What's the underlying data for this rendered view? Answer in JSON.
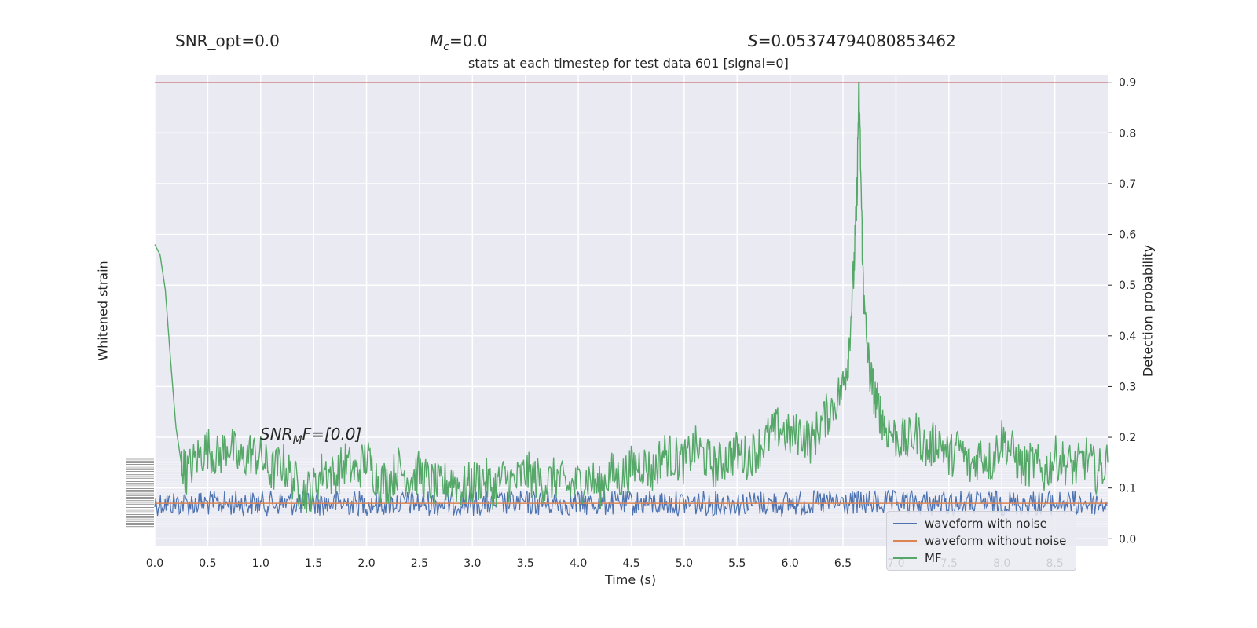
{
  "header": {
    "snr_opt": "SNR_opt=0.0",
    "mc_prefix": "M",
    "mc_sub": "c",
    "mc_value": "=0.0",
    "s_prefix": "S",
    "s_value": "=0.05374794080853462",
    "title": "stats at each timestep for test data 601 [signal=0]",
    "snr_mf_prefix": "SNR",
    "snr_mf_sub": "M",
    "snr_mf_suffix": "F=[0.0]"
  },
  "axes": {
    "xlabel": "Time (s)",
    "ylabel_left": "Whitened strain",
    "ylabel_right": "Detection probability"
  },
  "legend": {
    "items": [
      {
        "label": "waveform with noise",
        "color": "#4c72b0"
      },
      {
        "label": "waveform without noise",
        "color": "#dd8452"
      },
      {
        "label": "MF",
        "color": "#55a868"
      }
    ]
  },
  "colors": {
    "plot_bg": "#eaeaf2",
    "grid": "#ffffff",
    "noise": "#4c72b0",
    "no_noise": "#dd8452",
    "mf": "#55a868",
    "threshold": "#c44e52"
  },
  "chart_data": {
    "type": "line",
    "title": "stats at each timestep for test data 601 [signal=0]",
    "xlabel": "Time (s)",
    "ylabel": "Whitened strain",
    "ylabel_right": "Detection probability",
    "xlim": [
      0,
      9.0
    ],
    "ylim_right": [
      -0.015,
      0.915
    ],
    "xticks": [
      "0.0",
      "0.5",
      "1.0",
      "1.5",
      "2.0",
      "2.5",
      "3.0",
      "3.5",
      "4.0",
      "4.5",
      "5.0",
      "5.5",
      "6.0",
      "6.5",
      "7.0",
      "7.5",
      "8.0",
      "8.5"
    ],
    "yticks_right": [
      "0.0",
      "0.1",
      "0.2",
      "0.3",
      "0.4",
      "0.5",
      "0.6",
      "0.7",
      "0.8",
      "0.9"
    ],
    "grid": true,
    "legend_placement": "lower-right",
    "threshold": 0.9,
    "series": [
      {
        "name": "waveform with noise",
        "axis": "left",
        "description_level": 0.07,
        "amplitude": 0.025
      },
      {
        "name": "waveform without noise",
        "axis": "left",
        "constant": 0.07
      },
      {
        "name": "MF",
        "axis": "right",
        "x": [
          0.0,
          0.05,
          0.1,
          0.15,
          0.2,
          0.25,
          0.3,
          0.4,
          0.5,
          0.6,
          0.7,
          0.8,
          0.9,
          1.0,
          1.1,
          1.2,
          1.3,
          1.4,
          1.5,
          1.6,
          1.7,
          1.8,
          1.9,
          2.0,
          2.1,
          2.2,
          2.3,
          2.4,
          2.5,
          2.6,
          2.7,
          2.8,
          2.9,
          3.0,
          3.1,
          3.2,
          3.3,
          3.4,
          3.5,
          3.6,
          3.7,
          3.8,
          3.9,
          4.0,
          4.1,
          4.2,
          4.3,
          4.4,
          4.5,
          4.6,
          4.7,
          4.8,
          4.9,
          5.0,
          5.1,
          5.2,
          5.3,
          5.4,
          5.5,
          5.6,
          5.7,
          5.8,
          5.9,
          6.0,
          6.1,
          6.2,
          6.3,
          6.4,
          6.5,
          6.55,
          6.6,
          6.63,
          6.65,
          6.68,
          6.7,
          6.75,
          6.8,
          6.85,
          6.9,
          7.0,
          7.1,
          7.2,
          7.3,
          7.4,
          7.5,
          7.6,
          7.7,
          7.8,
          7.9,
          8.0,
          8.1,
          8.2,
          8.3,
          8.4,
          8.5,
          8.6,
          8.7,
          8.8,
          8.9,
          9.0
        ],
        "y": [
          0.58,
          0.56,
          0.49,
          0.35,
          0.22,
          0.15,
          0.13,
          0.16,
          0.18,
          0.16,
          0.19,
          0.15,
          0.17,
          0.16,
          0.13,
          0.15,
          0.12,
          0.09,
          0.1,
          0.14,
          0.12,
          0.15,
          0.13,
          0.16,
          0.12,
          0.11,
          0.14,
          0.12,
          0.13,
          0.11,
          0.1,
          0.12,
          0.1,
          0.11,
          0.12,
          0.1,
          0.12,
          0.11,
          0.13,
          0.12,
          0.11,
          0.12,
          0.1,
          0.11,
          0.12,
          0.1,
          0.13,
          0.12,
          0.14,
          0.15,
          0.13,
          0.17,
          0.16,
          0.15,
          0.18,
          0.16,
          0.14,
          0.16,
          0.17,
          0.16,
          0.18,
          0.2,
          0.22,
          0.2,
          0.21,
          0.19,
          0.23,
          0.26,
          0.3,
          0.36,
          0.52,
          0.66,
          0.9,
          0.6,
          0.45,
          0.33,
          0.28,
          0.25,
          0.22,
          0.2,
          0.19,
          0.21,
          0.17,
          0.2,
          0.16,
          0.18,
          0.14,
          0.17,
          0.15,
          0.2,
          0.17,
          0.14,
          0.15,
          0.13,
          0.16,
          0.15,
          0.14,
          0.16,
          0.13,
          0.15
        ]
      }
    ]
  }
}
